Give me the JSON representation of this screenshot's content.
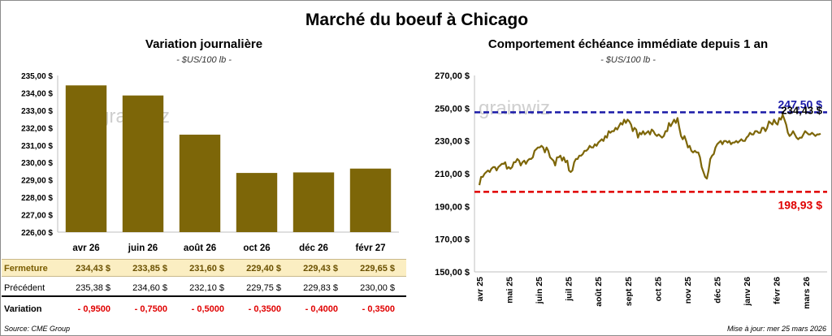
{
  "title": "Marché du boeuf à Chicago",
  "footer": {
    "source": "Source: CME Group",
    "update": "Mise à jour: mer 25 mars 2026"
  },
  "watermark": "grainwiz",
  "colors": {
    "bar": "#7d6608",
    "line": "#7d6608",
    "high": "#1a1aa8",
    "low": "#e00000",
    "close_row": "#fbeec2"
  },
  "chart_data": [
    {
      "type": "bar",
      "title": "Variation journalière",
      "subtitle": "- $US/100 lb -",
      "categories": [
        "avr 26",
        "juin 26",
        "août 26",
        "oct 26",
        "déc 26",
        "févr 27"
      ],
      "values": [
        234.43,
        233.85,
        231.6,
        229.4,
        229.43,
        229.65
      ],
      "ylim": [
        226,
        235
      ],
      "yticks": [
        "226,00 $",
        "227,00 $",
        "228,00 $",
        "229,00 $",
        "230,00 $",
        "231,00 $",
        "232,00 $",
        "233,00 $",
        "234,00 $",
        "235,00 $"
      ],
      "table": {
        "rows": [
          {
            "label": "Fermeture",
            "cells": [
              "234,43  $",
              "233,85  $",
              "231,60  $",
              "229,40  $",
              "229,43  $",
              "229,65  $"
            ]
          },
          {
            "label": "Précédent",
            "cells": [
              "235,38  $",
              "234,60  $",
              "232,10  $",
              "229,75  $",
              "229,83  $",
              "230,00  $"
            ]
          },
          {
            "label": "Variation",
            "cells": [
              "- 0,9500",
              "- 0,7500",
              "- 0,5000",
              "- 0,3500",
              "- 0,4000",
              "- 0,3500"
            ]
          }
        ]
      }
    },
    {
      "type": "line",
      "title": "Comportement  échéance immédiate depuis 1 an",
      "subtitle": "- $US/100 lb -",
      "ylim": [
        150,
        270
      ],
      "yticks": [
        "150,00 $",
        "170,00 $",
        "190,00 $",
        "210,00 $",
        "230,00 $",
        "250,00 $",
        "270,00 $"
      ],
      "xticks": [
        "avr 25",
        "mai 25",
        "juin 25",
        "juil 25",
        "août 25",
        "sept 25",
        "oct 25",
        "nov 25",
        "déc 25",
        "janv 26",
        "févr 26",
        "mars 26"
      ],
      "high": {
        "value": 247.5,
        "label": "247,50 $"
      },
      "low": {
        "value": 198.93,
        "label": "198,93 $"
      },
      "last": {
        "value": 234.43,
        "label": "234,43 $"
      },
      "series": [
        {
          "values": [
            203,
            208,
            208,
            210,
            211,
            212,
            211,
            213,
            214,
            214,
            212,
            214,
            215,
            216,
            216,
            217,
            213,
            214,
            213,
            214,
            217,
            217,
            219,
            218,
            215,
            217,
            218,
            216,
            218,
            219,
            219,
            220,
            224,
            225,
            226,
            226,
            227,
            226,
            223,
            226,
            224,
            220,
            219,
            218,
            215,
            220,
            220,
            221,
            218,
            220,
            217,
            218,
            212,
            211,
            212,
            217,
            219,
            219,
            221,
            221,
            222,
            224,
            224,
            225,
            227,
            226,
            226,
            228,
            227,
            229,
            230,
            231,
            230,
            233,
            232,
            236,
            235,
            236,
            236,
            238,
            237,
            239,
            241,
            240,
            243,
            241,
            243,
            242,
            240,
            236,
            238,
            237,
            232,
            235,
            234,
            236,
            234,
            235,
            236,
            234,
            237,
            236,
            234,
            233,
            234,
            233,
            232,
            233,
            236,
            236,
            241,
            239,
            241,
            243,
            241,
            244,
            238,
            233,
            231,
            233,
            230,
            226,
            227,
            224,
            223,
            224,
            223,
            223,
            220,
            214,
            211,
            208,
            207,
            212,
            219,
            221,
            222,
            226,
            228,
            229,
            230,
            228,
            230,
            230,
            229,
            230,
            228,
            229,
            229,
            230,
            229,
            230,
            231,
            230,
            230,
            232,
            233,
            235,
            234,
            234,
            236,
            236,
            235,
            235,
            238,
            238,
            236,
            238,
            242,
            241,
            240,
            243,
            241,
            240,
            244,
            243,
            246,
            243,
            240,
            235,
            233,
            234,
            236,
            234,
            232,
            231,
            232,
            232,
            234,
            236,
            235,
            234,
            234,
            235,
            234,
            233,
            234,
            234,
            234.43
          ]
        }
      ]
    }
  ]
}
